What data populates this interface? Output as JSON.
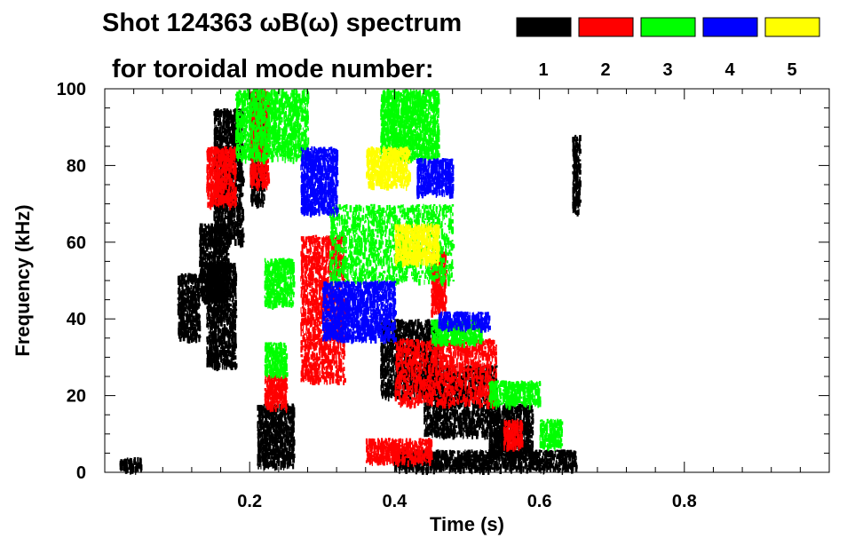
{
  "chart_data": {
    "type": "spectrogram",
    "title_line1": "Shot 124363 ωB(ω) spectrum",
    "title_line2": "for toroidal mode number:",
    "xlabel": "Time (s)",
    "ylabel": "Frequency (kHz)",
    "xlim": [
      0.0,
      1.0
    ],
    "ylim": [
      0,
      100
    ],
    "x_ticks": [
      {
        "value": 0.2,
        "label": "0.2"
      },
      {
        "value": 0.4,
        "label": "0.4"
      },
      {
        "value": 0.6,
        "label": "0.6"
      },
      {
        "value": 0.8,
        "label": "0.8"
      }
    ],
    "y_ticks": [
      {
        "value": 0,
        "label": "0"
      },
      {
        "value": 20,
        "label": "20"
      },
      {
        "value": 40,
        "label": "40"
      },
      {
        "value": 60,
        "label": "60"
      },
      {
        "value": 80,
        "label": "80"
      },
      {
        "value": 100,
        "label": "100"
      }
    ],
    "legend": [
      {
        "mode": "1",
        "color": "#000000"
      },
      {
        "mode": "2",
        "color": "#ff0000"
      },
      {
        "mode": "3",
        "color": "#00ff00"
      },
      {
        "mode": "4",
        "color": "#0000ff"
      },
      {
        "mode": "5",
        "color": "#ffff00"
      }
    ],
    "series": [
      {
        "name": "n=1",
        "color": "#000000",
        "regions": [
          {
            "t": [
              0.1,
              0.13
            ],
            "f": [
              35,
              52
            ]
          },
          {
            "t": [
              0.13,
              0.17
            ],
            "f": [
              45,
              65
            ]
          },
          {
            "t": [
              0.14,
              0.18
            ],
            "f": [
              28,
              55
            ]
          },
          {
            "t": [
              0.15,
              0.19
            ],
            "f": [
              60,
              95
            ]
          },
          {
            "t": [
              0.2,
              0.22
            ],
            "f": [
              70,
              98
            ]
          },
          {
            "t": [
              0.21,
              0.26
            ],
            "f": [
              2,
              18
            ]
          },
          {
            "t": [
              0.38,
              0.46
            ],
            "f": [
              20,
              40
            ]
          },
          {
            "t": [
              0.44,
              0.54
            ],
            "f": [
              10,
              28
            ]
          },
          {
            "t": [
              0.53,
              0.59
            ],
            "f": [
              5,
              18
            ]
          },
          {
            "t": [
              0.4,
              0.65
            ],
            "f": [
              1,
              6
            ]
          },
          {
            "t": [
              0.02,
              0.05
            ],
            "f": [
              1,
              4
            ]
          },
          {
            "t": [
              0.645,
              0.655
            ],
            "f": [
              68,
              88
            ]
          }
        ]
      },
      {
        "name": "n=2",
        "color": "#ff0000",
        "regions": [
          {
            "t": [
              0.14,
              0.18
            ],
            "f": [
              70,
              85
            ]
          },
          {
            "t": [
              0.2,
              0.225
            ],
            "f": [
              75,
              100
            ]
          },
          {
            "t": [
              0.22,
              0.25
            ],
            "f": [
              17,
              26
            ]
          },
          {
            "t": [
              0.27,
              0.33
            ],
            "f": [
              24,
              62
            ]
          },
          {
            "t": [
              0.45,
              0.47
            ],
            "f": [
              42,
              58
            ]
          },
          {
            "t": [
              0.4,
              0.54
            ],
            "f": [
              18,
              35
            ]
          },
          {
            "t": [
              0.55,
              0.575
            ],
            "f": [
              7,
              14
            ]
          },
          {
            "t": [
              0.36,
              0.45
            ],
            "f": [
              3,
              9
            ]
          }
        ]
      },
      {
        "name": "n=3",
        "color": "#00ff00",
        "regions": [
          {
            "t": [
              0.18,
              0.28
            ],
            "f": [
              82,
              100
            ]
          },
          {
            "t": [
              0.22,
              0.26
            ],
            "f": [
              44,
              56
            ]
          },
          {
            "t": [
              0.22,
              0.25
            ],
            "f": [
              26,
              34
            ]
          },
          {
            "t": [
              0.31,
              0.48
            ],
            "f": [
              50,
              70
            ]
          },
          {
            "t": [
              0.38,
              0.46
            ],
            "f": [
              82,
              100
            ]
          },
          {
            "t": [
              0.45,
              0.52
            ],
            "f": [
              34,
              40
            ]
          },
          {
            "t": [
              0.53,
              0.6
            ],
            "f": [
              18,
              24
            ]
          },
          {
            "t": [
              0.6,
              0.63
            ],
            "f": [
              7,
              14
            ]
          }
        ]
      },
      {
        "name": "n=4",
        "color": "#0000ff",
        "regions": [
          {
            "t": [
              0.27,
              0.32
            ],
            "f": [
              68,
              85
            ]
          },
          {
            "t": [
              0.3,
              0.4
            ],
            "f": [
              35,
              50
            ]
          },
          {
            "t": [
              0.43,
              0.48
            ],
            "f": [
              73,
              82
            ]
          },
          {
            "t": [
              0.46,
              0.53
            ],
            "f": [
              38,
              42
            ]
          }
        ]
      },
      {
        "name": "n=5",
        "color": "#ffff00",
        "regions": [
          {
            "t": [
              0.36,
              0.42
            ],
            "f": [
              75,
              85
            ]
          },
          {
            "t": [
              0.4,
              0.46
            ],
            "f": [
              55,
              65
            ]
          }
        ]
      }
    ]
  }
}
